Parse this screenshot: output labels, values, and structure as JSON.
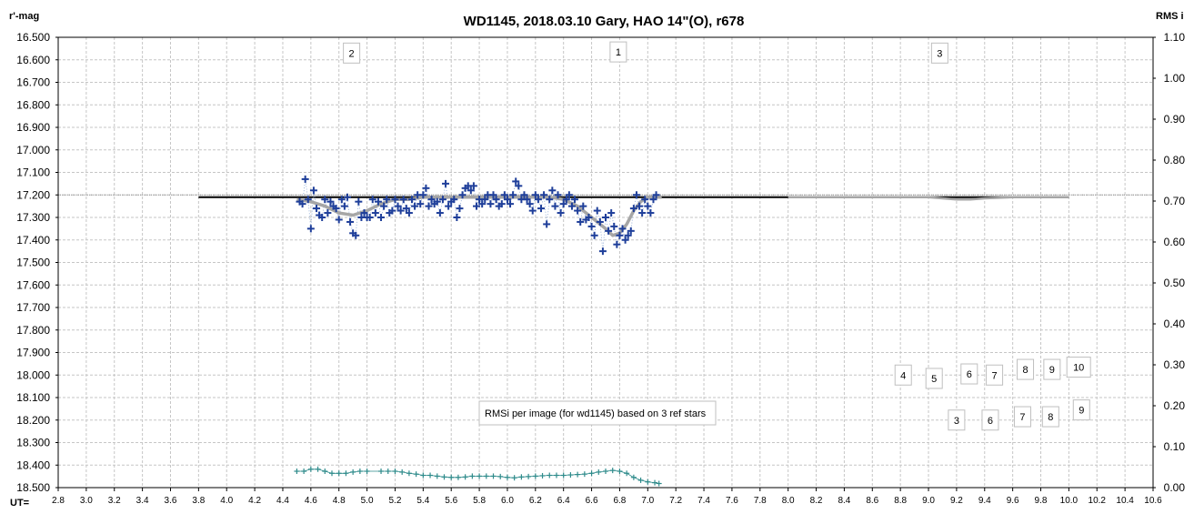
{
  "chart_data": {
    "type": "scatter",
    "title": "WD1145, 2018.03.10  Gary, HAO  14\"(O), r678",
    "ylabel_left": "r'-mag",
    "ylabel_right": "RMS i",
    "xlabel": "UT=",
    "xlim": [
      2.8,
      10.6
    ],
    "ylim_left": [
      16.5,
      18.5
    ],
    "ylim_left_inverted": true,
    "ylim_right": [
      0.0,
      1.1
    ],
    "grid": true,
    "x_ticks": [
      "2.8",
      "3.0",
      "3.2",
      "3.4",
      "3.6",
      "3.8",
      "4.0",
      "4.2",
      "4.4",
      "4.6",
      "4.8",
      "5.0",
      "5.2",
      "5.4",
      "5.6",
      "5.8",
      "6.0",
      "6.2",
      "6.4",
      "6.6",
      "6.8",
      "7.0",
      "7.2",
      "7.4",
      "7.6",
      "7.8",
      "8.0",
      "8.2",
      "8.4",
      "8.6",
      "8.8",
      "9.0",
      "9.2",
      "9.4",
      "9.6",
      "9.8",
      "10.0",
      "10.2",
      "10.4",
      "10.6"
    ],
    "y_ticks_left": [
      "16.500",
      "16.600",
      "16.700",
      "16.800",
      "16.900",
      "17.000",
      "17.100",
      "17.200",
      "17.300",
      "17.400",
      "17.500",
      "17.600",
      "17.700",
      "17.800",
      "17.900",
      "18.000",
      "18.100",
      "18.200",
      "18.300",
      "18.400",
      "18.500"
    ],
    "y_ticks_right": [
      "1.10",
      "1.00",
      "0.90",
      "0.80",
      "0.70",
      "0.60",
      "0.50",
      "0.40",
      "0.30",
      "0.20",
      "0.10",
      "0.00"
    ],
    "reference_level": 17.2,
    "series": [
      {
        "role": "measurements",
        "color": "#1f3f9a",
        "marker": "plus",
        "x": [
          4.52,
          4.54,
          4.56,
          4.58,
          4.6,
          4.62,
          4.64,
          4.66,
          4.68,
          4.7,
          4.72,
          4.74,
          4.76,
          4.78,
          4.8,
          4.82,
          4.84,
          4.86,
          4.88,
          4.9,
          4.92,
          4.94,
          4.96,
          4.98,
          5.0,
          5.02,
          5.04,
          5.06,
          5.08,
          5.1,
          5.12,
          5.14,
          5.16,
          5.18,
          5.2,
          5.22,
          5.24,
          5.26,
          5.28,
          5.3,
          5.32,
          5.34,
          5.36,
          5.38,
          5.4,
          5.42,
          5.44,
          5.46,
          5.48,
          5.5,
          5.52,
          5.54,
          5.56,
          5.58,
          5.6,
          5.62,
          5.64,
          5.66,
          5.68,
          5.7,
          5.72,
          5.74,
          5.76,
          5.78,
          5.8,
          5.82,
          5.84,
          5.86,
          5.88,
          5.9,
          5.92,
          5.94,
          5.96,
          5.98,
          6.0,
          6.02,
          6.04,
          6.06,
          6.08,
          6.1,
          6.12,
          6.14,
          6.16,
          6.18,
          6.2,
          6.22,
          6.24,
          6.26,
          6.28,
          6.3,
          6.32,
          6.34,
          6.36,
          6.38,
          6.4,
          6.42,
          6.44,
          6.46,
          6.48,
          6.5,
          6.52,
          6.54,
          6.56,
          6.58,
          6.6,
          6.62,
          6.64,
          6.66,
          6.68,
          6.7,
          6.72,
          6.74,
          6.76,
          6.78,
          6.8,
          6.82,
          6.84,
          6.86,
          6.88,
          6.9,
          6.92,
          6.94,
          6.96,
          6.98,
          7.0,
          7.02,
          7.04,
          7.06
        ],
        "y": [
          17.23,
          17.24,
          17.13,
          17.22,
          17.35,
          17.18,
          17.26,
          17.29,
          17.3,
          17.22,
          17.28,
          17.23,
          17.25,
          17.26,
          17.31,
          17.22,
          17.25,
          17.21,
          17.32,
          17.37,
          17.38,
          17.23,
          17.3,
          17.28,
          17.3,
          17.3,
          17.22,
          17.28,
          17.23,
          17.3,
          17.25,
          17.22,
          17.28,
          17.27,
          17.22,
          17.25,
          17.27,
          17.22,
          17.26,
          17.28,
          17.22,
          17.25,
          17.2,
          17.24,
          17.2,
          17.17,
          17.25,
          17.22,
          17.24,
          17.23,
          17.28,
          17.22,
          17.15,
          17.25,
          17.23,
          17.22,
          17.3,
          17.26,
          17.2,
          17.17,
          17.16,
          17.18,
          17.16,
          17.25,
          17.22,
          17.24,
          17.22,
          17.2,
          17.24,
          17.2,
          17.22,
          17.25,
          17.24,
          17.2,
          17.22,
          17.24,
          17.2,
          17.14,
          17.16,
          17.22,
          17.2,
          17.22,
          17.24,
          17.27,
          17.2,
          17.22,
          17.26,
          17.2,
          17.33,
          17.22,
          17.18,
          17.25,
          17.2,
          17.28,
          17.24,
          17.22,
          17.2,
          17.25,
          17.22,
          17.27,
          17.32,
          17.25,
          17.31,
          17.3,
          17.34,
          17.38,
          17.27,
          17.32,
          17.45,
          17.3,
          17.36,
          17.28,
          17.34,
          17.42,
          17.38,
          17.35,
          17.4,
          17.38,
          17.36,
          17.26,
          17.2,
          17.25,
          17.28,
          17.22,
          17.25,
          17.28,
          17.22,
          17.2
        ]
      },
      {
        "role": "model_fit",
        "color": "#a6a6a6",
        "x": [
          4.5,
          4.6,
          4.7,
          4.8,
          4.9,
          5.0,
          5.1,
          5.2,
          5.3,
          5.4,
          5.5,
          5.6,
          5.7,
          5.8,
          5.9,
          6.0,
          6.1,
          6.2,
          6.3,
          6.4,
          6.5,
          6.6,
          6.7,
          6.75,
          6.8,
          6.85,
          6.9,
          6.95,
          7.0,
          7.05,
          7.1
        ],
        "y": [
          17.22,
          17.23,
          17.25,
          17.28,
          17.29,
          17.27,
          17.24,
          17.22,
          17.22,
          17.21,
          17.21,
          17.21,
          17.21,
          17.21,
          17.21,
          17.21,
          17.21,
          17.21,
          17.21,
          17.22,
          17.25,
          17.3,
          17.35,
          17.38,
          17.37,
          17.33,
          17.27,
          17.23,
          17.21,
          17.21,
          17.21
        ]
      },
      {
        "role": "event_3_model",
        "color": "#a6a6a6",
        "x": [
          8.0,
          9.0,
          9.1,
          9.2,
          9.3,
          9.4,
          9.6,
          10.0
        ],
        "y": [
          17.21,
          17.21,
          17.215,
          17.22,
          17.22,
          17.215,
          17.21,
          17.21
        ]
      },
      {
        "role": "baseline",
        "color": "#000000",
        "x": [
          3.8,
          10.0
        ],
        "y": [
          17.21,
          17.21
        ]
      },
      {
        "role": "rms",
        "axis": "right",
        "color": "#2e8b8b",
        "marker": "plus",
        "x": [
          4.5,
          4.55,
          4.6,
          4.65,
          4.7,
          4.75,
          4.8,
          4.85,
          4.9,
          4.95,
          5.0,
          5.1,
          5.15,
          5.2,
          5.25,
          5.3,
          5.35,
          5.4,
          5.45,
          5.5,
          5.55,
          5.6,
          5.65,
          5.7,
          5.75,
          5.8,
          5.85,
          5.9,
          5.95,
          6.0,
          6.05,
          6.1,
          6.15,
          6.2,
          6.25,
          6.3,
          6.35,
          6.4,
          6.45,
          6.5,
          6.55,
          6.6,
          6.65,
          6.7,
          6.75,
          6.8,
          6.85,
          6.9,
          6.95,
          7.0,
          7.05,
          7.08
        ],
        "y": [
          0.04,
          0.04,
          0.045,
          0.045,
          0.04,
          0.035,
          0.035,
          0.035,
          0.038,
          0.04,
          0.04,
          0.04,
          0.04,
          0.04,
          0.038,
          0.035,
          0.033,
          0.03,
          0.03,
          0.028,
          0.026,
          0.025,
          0.025,
          0.026,
          0.028,
          0.028,
          0.028,
          0.028,
          0.027,
          0.025,
          0.024,
          0.026,
          0.027,
          0.028,
          0.029,
          0.03,
          0.03,
          0.03,
          0.031,
          0.032,
          0.033,
          0.035,
          0.038,
          0.04,
          0.042,
          0.04,
          0.035,
          0.025,
          0.018,
          0.014,
          0.012,
          0.01
        ]
      }
    ],
    "annotations": [
      {
        "label": "1",
        "x": 6.79,
        "y": 16.565
      },
      {
        "label": "2",
        "x": 4.89,
        "y": 16.57
      },
      {
        "label": "3",
        "x": 9.08,
        "y": 16.57
      },
      {
        "label": "4",
        "x": 8.82,
        "y": 18.0
      },
      {
        "label": "5",
        "x": 9.04,
        "y": 18.015
      },
      {
        "label": "6",
        "x": 9.29,
        "y": 17.995
      },
      {
        "label": "7",
        "x": 9.47,
        "y": 18.0
      },
      {
        "label": "8",
        "x": 9.69,
        "y": 17.975
      },
      {
        "label": "9",
        "x": 9.88,
        "y": 17.975
      },
      {
        "label": "10",
        "x": 10.07,
        "y": 17.965
      },
      {
        "label": "3",
        "x": 9.2,
        "y": 18.2
      },
      {
        "label": "6",
        "x": 9.44,
        "y": 18.2
      },
      {
        "label": "7",
        "x": 9.67,
        "y": 18.185
      },
      {
        "label": "8",
        "x": 9.87,
        "y": 18.185
      },
      {
        "label": "9",
        "x": 10.09,
        "y": 18.155
      }
    ],
    "note": "RMSi per image (for wd1145) based on 3 ref stars"
  }
}
